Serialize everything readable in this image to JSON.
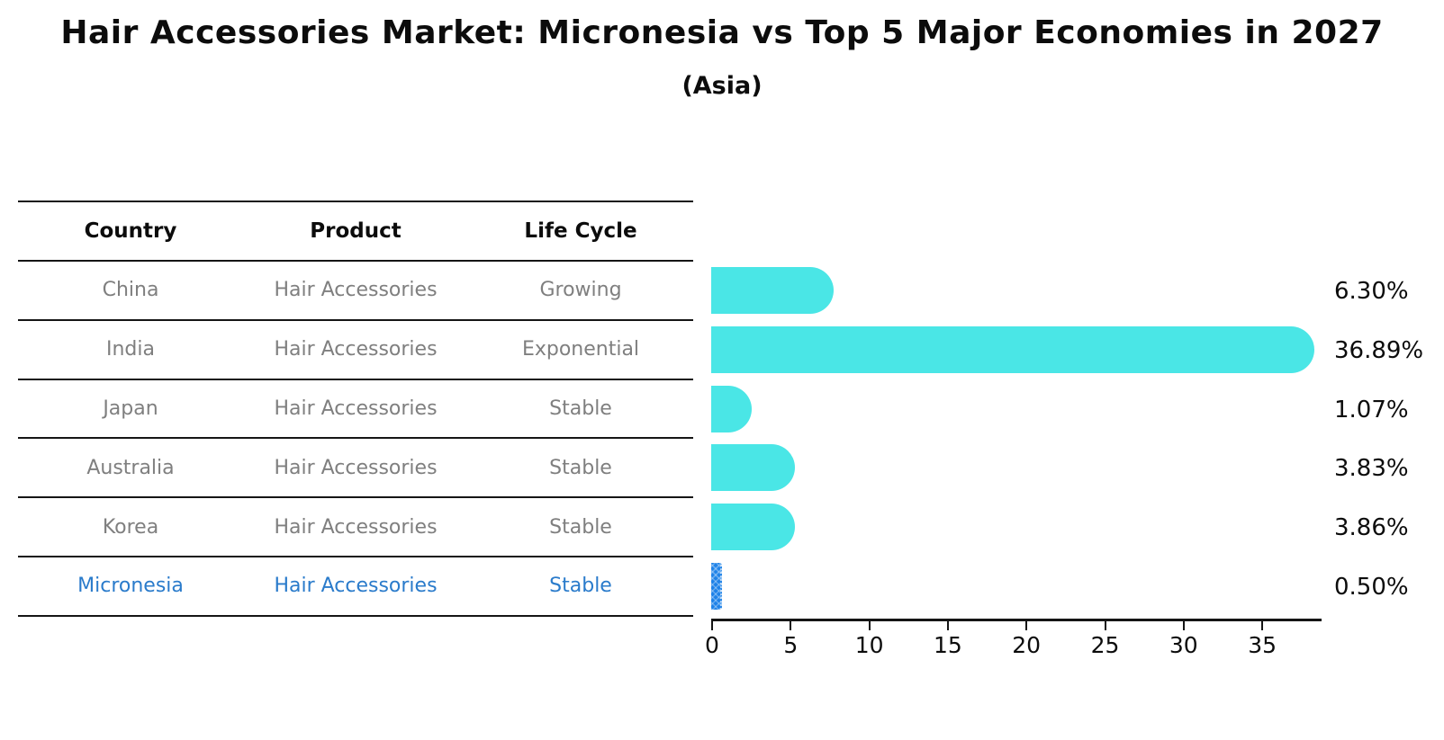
{
  "header": {
    "title": "Hair Accessories Market: Micronesia vs Top 5 Major Economies in 2027",
    "subtitle": "(Asia)"
  },
  "table": {
    "columns": [
      "Country",
      "Product",
      "Life Cycle"
    ],
    "rows": [
      {
        "country": "China",
        "product": "Hair Accessories",
        "life_cycle": "Growing",
        "value": 6.3,
        "label": "6.30%",
        "highlight": false
      },
      {
        "country": "India",
        "product": "Hair Accessories",
        "life_cycle": "Exponential",
        "value": 36.89,
        "label": "36.89%",
        "highlight": false
      },
      {
        "country": "Japan",
        "product": "Hair Accessories",
        "life_cycle": "Stable",
        "value": 1.07,
        "label": "1.07%",
        "highlight": false
      },
      {
        "country": "Australia",
        "product": "Hair Accessories",
        "life_cycle": "Stable",
        "value": 3.83,
        "label": "3.83%",
        "highlight": false
      },
      {
        "country": "Korea",
        "product": "Hair Accessories",
        "life_cycle": "Stable",
        "value": 3.86,
        "label": "3.86%",
        "highlight": false
      },
      {
        "country": "Micronesia",
        "product": "Hair Accessories",
        "life_cycle": "Stable",
        "value": 0.5,
        "label": "0.50%",
        "highlight": true
      }
    ]
  },
  "chart_data": {
    "type": "bar",
    "orientation": "horizontal",
    "title": "Hair Accessories Market: Micronesia vs Top 5 Major Economies in 2027",
    "subtitle": "(Asia)",
    "categories": [
      "China",
      "India",
      "Japan",
      "Australia",
      "Korea",
      "Micronesia"
    ],
    "values": [
      6.3,
      36.89,
      1.07,
      3.83,
      3.86,
      0.5
    ],
    "value_labels": [
      "6.30%",
      "36.89%",
      "1.07%",
      "3.83%",
      "3.86%",
      "0.50%"
    ],
    "xlabel": "",
    "ylabel": "",
    "xlim": [
      0,
      38.7
    ],
    "x_ticks": [
      0,
      5,
      10,
      15,
      20,
      25,
      30,
      35
    ],
    "grid": false,
    "legend": "none",
    "colors": {
      "default_bar": "#4AE6E6",
      "highlight_bar": "#1E82E8",
      "highlight_text": "#2A7BCB",
      "table_text": "#7f7f7f",
      "heading_text": "#0c0c0c"
    }
  }
}
